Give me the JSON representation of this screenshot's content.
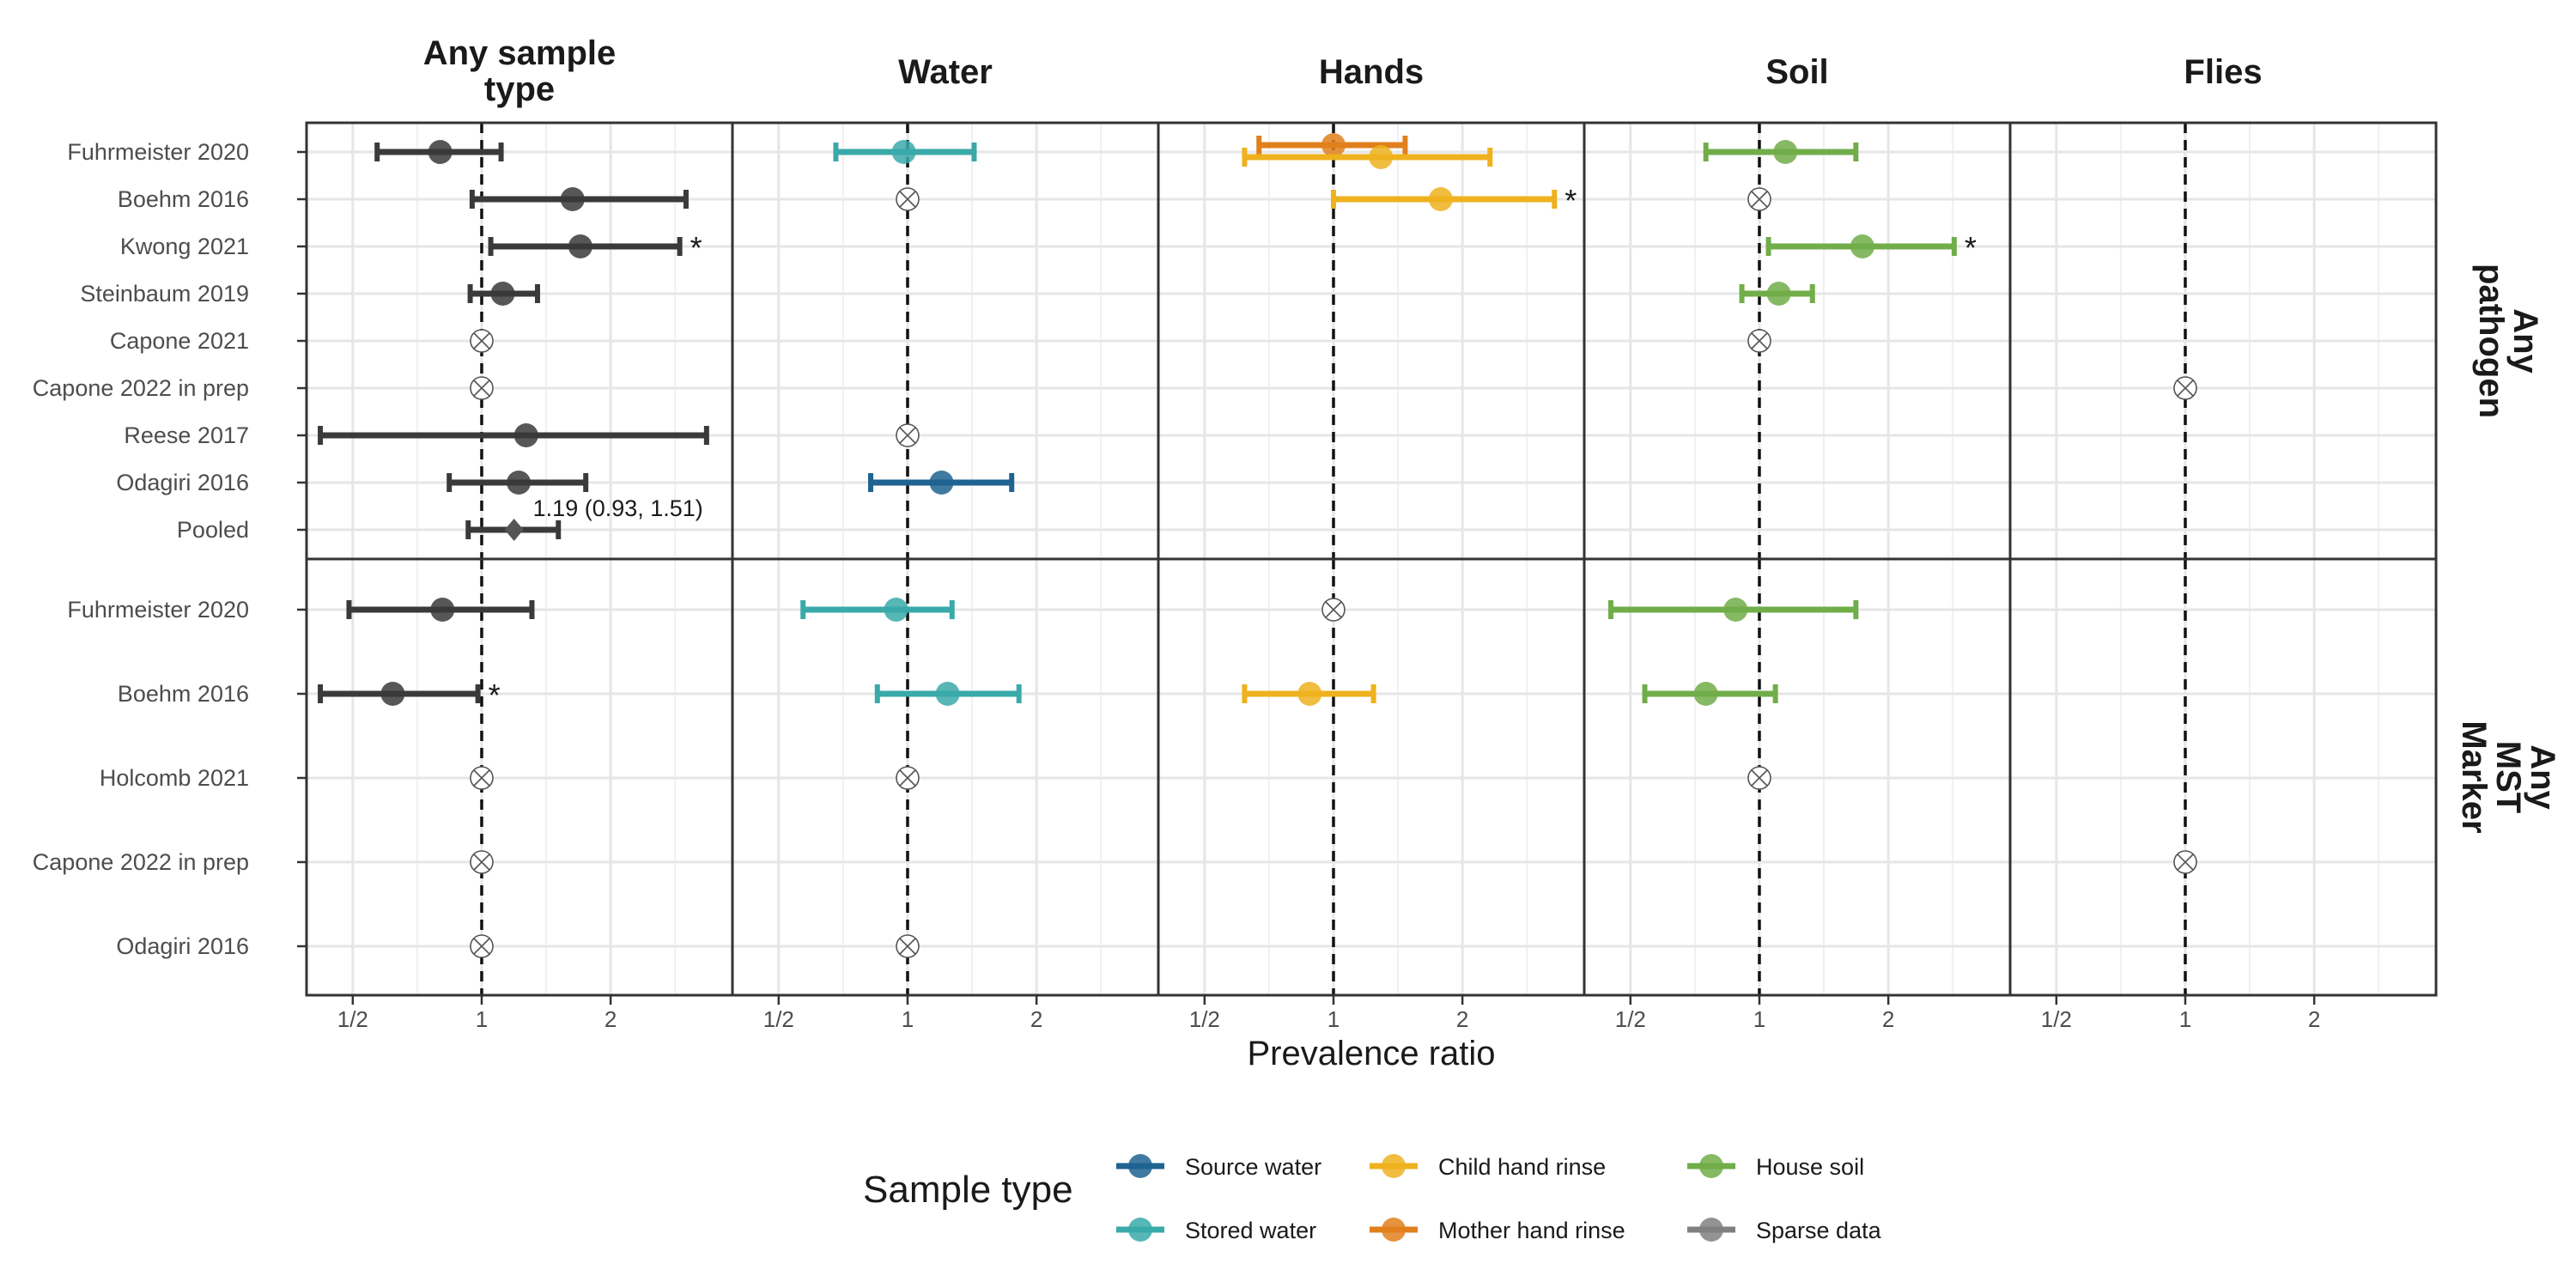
{
  "chart_data": {
    "type": "forest",
    "xlabel": "Prevalence ratio",
    "x_scale": "log2",
    "xlim": [
      0.39,
      3.85
    ],
    "x_ticks": [
      0.5,
      1,
      2
    ],
    "x_tick_labels": [
      "1/2",
      "1",
      "2"
    ],
    "reference_line": 1,
    "grid": true,
    "legend_position": "bottom",
    "columns": [
      "Any sample type",
      "Water",
      "Hands",
      "Soil",
      "Flies"
    ],
    "rows": [
      {
        "name": "Any pathogen",
        "studies": [
          "Fuhrmeister 2020",
          "Boehm 2016",
          "Kwong 2021",
          "Steinbaum 2019",
          "Capone 2021",
          "Capone 2022 in prep",
          "Reese 2017",
          "Odagiri 2016",
          "Pooled"
        ]
      },
      {
        "name": "Any MST Marker",
        "studies": [
          "Fuhrmeister 2020",
          "Boehm 2016",
          "Holcomb 2021",
          "Capone 2022 in prep",
          "Odagiri 2016"
        ]
      }
    ],
    "legend": {
      "title": "Sample type",
      "items": [
        {
          "key": "source",
          "label": "Source water",
          "color": "#1f6391"
        },
        {
          "key": "stored",
          "label": "Stored water",
          "color": "#3aa9a9"
        },
        {
          "key": "child",
          "label": "Child hand rinse",
          "color": "#efb11e"
        },
        {
          "key": "mother",
          "label": "Mother hand rinse",
          "color": "#e0801d"
        },
        {
          "key": "soil",
          "label": "House soil",
          "color": "#71ad49"
        },
        {
          "key": "sparse",
          "label": "Sparse data",
          "color": "#808080"
        }
      ]
    },
    "estimates": [
      {
        "row": 0,
        "col": 0,
        "study": 0,
        "type": "any",
        "est": 0.8,
        "lo": 0.57,
        "hi": 1.11
      },
      {
        "row": 0,
        "col": 0,
        "study": 1,
        "type": "any",
        "est": 1.63,
        "lo": 0.95,
        "hi": 3.0
      },
      {
        "row": 0,
        "col": 0,
        "study": 2,
        "type": "any",
        "est": 1.7,
        "lo": 1.05,
        "hi": 2.9,
        "star": "*"
      },
      {
        "row": 0,
        "col": 0,
        "study": 3,
        "type": "any",
        "est": 1.12,
        "lo": 0.94,
        "hi": 1.35
      },
      {
        "row": 0,
        "col": 0,
        "study": 6,
        "type": "any",
        "est": 1.27,
        "lo": 0.42,
        "hi": 3.35
      },
      {
        "row": 0,
        "col": 0,
        "study": 7,
        "type": "any",
        "est": 1.22,
        "lo": 0.84,
        "hi": 1.75
      },
      {
        "row": 0,
        "col": 0,
        "study": 8,
        "type": "pooled",
        "est": 1.19,
        "lo": 0.93,
        "hi": 1.51,
        "label": "1.19 (0.93, 1.51)"
      },
      {
        "row": 0,
        "col": 1,
        "study": 0,
        "type": "stored",
        "est": 0.98,
        "lo": 0.68,
        "hi": 1.43
      },
      {
        "row": 0,
        "col": 1,
        "study": 7,
        "type": "source",
        "est": 1.2,
        "lo": 0.82,
        "hi": 1.75
      },
      {
        "row": 0,
        "col": 2,
        "study": 0,
        "type": "mother",
        "est": 1.0,
        "lo": 0.67,
        "hi": 1.47
      },
      {
        "row": 0,
        "col": 2,
        "study": 0,
        "type": "child",
        "est": 1.29,
        "lo": 0.62,
        "hi": 2.32,
        "offset": 1
      },
      {
        "row": 0,
        "col": 2,
        "study": 1,
        "type": "child",
        "est": 1.78,
        "lo": 1.0,
        "hi": 3.28,
        "star": "*"
      },
      {
        "row": 0,
        "col": 3,
        "study": 0,
        "type": "soil",
        "est": 1.15,
        "lo": 0.75,
        "hi": 1.68
      },
      {
        "row": 0,
        "col": 3,
        "study": 2,
        "type": "soil",
        "est": 1.74,
        "lo": 1.05,
        "hi": 2.85,
        "star": "*"
      },
      {
        "row": 0,
        "col": 3,
        "study": 3,
        "type": "soil",
        "est": 1.11,
        "lo": 0.91,
        "hi": 1.33
      },
      {
        "row": 1,
        "col": 0,
        "study": 0,
        "type": "any",
        "est": 0.81,
        "lo": 0.49,
        "hi": 1.31
      },
      {
        "row": 1,
        "col": 0,
        "study": 1,
        "type": "any",
        "est": 0.62,
        "lo": 0.42,
        "hi": 0.98,
        "star": "*"
      },
      {
        "row": 1,
        "col": 1,
        "study": 0,
        "type": "stored",
        "est": 0.94,
        "lo": 0.57,
        "hi": 1.27
      },
      {
        "row": 1,
        "col": 1,
        "study": 1,
        "type": "stored",
        "est": 1.24,
        "lo": 0.85,
        "hi": 1.82
      },
      {
        "row": 1,
        "col": 2,
        "study": 1,
        "type": "child",
        "est": 0.88,
        "lo": 0.62,
        "hi": 1.24
      },
      {
        "row": 1,
        "col": 3,
        "study": 0,
        "type": "soil",
        "est": 0.88,
        "lo": 0.45,
        "hi": 1.68
      },
      {
        "row": 1,
        "col": 3,
        "study": 1,
        "type": "soil",
        "est": 0.75,
        "lo": 0.54,
        "hi": 1.09
      }
    ],
    "sparse_markers": [
      {
        "row": 0,
        "col": 0,
        "study": 4
      },
      {
        "row": 0,
        "col": 0,
        "study": 5
      },
      {
        "row": 0,
        "col": 1,
        "study": 1
      },
      {
        "row": 0,
        "col": 1,
        "study": 6
      },
      {
        "row": 0,
        "col": 3,
        "study": 1
      },
      {
        "row": 0,
        "col": 3,
        "study": 4
      },
      {
        "row": 0,
        "col": 4,
        "study": 5
      },
      {
        "row": 1,
        "col": 0,
        "study": 2
      },
      {
        "row": 1,
        "col": 0,
        "study": 3
      },
      {
        "row": 1,
        "col": 0,
        "study": 4
      },
      {
        "row": 1,
        "col": 1,
        "study": 2
      },
      {
        "row": 1,
        "col": 1,
        "study": 4
      },
      {
        "row": 1,
        "col": 2,
        "study": 0
      },
      {
        "row": 1,
        "col": 3,
        "study": 2
      },
      {
        "row": 1,
        "col": 4,
        "study": 3
      }
    ]
  }
}
